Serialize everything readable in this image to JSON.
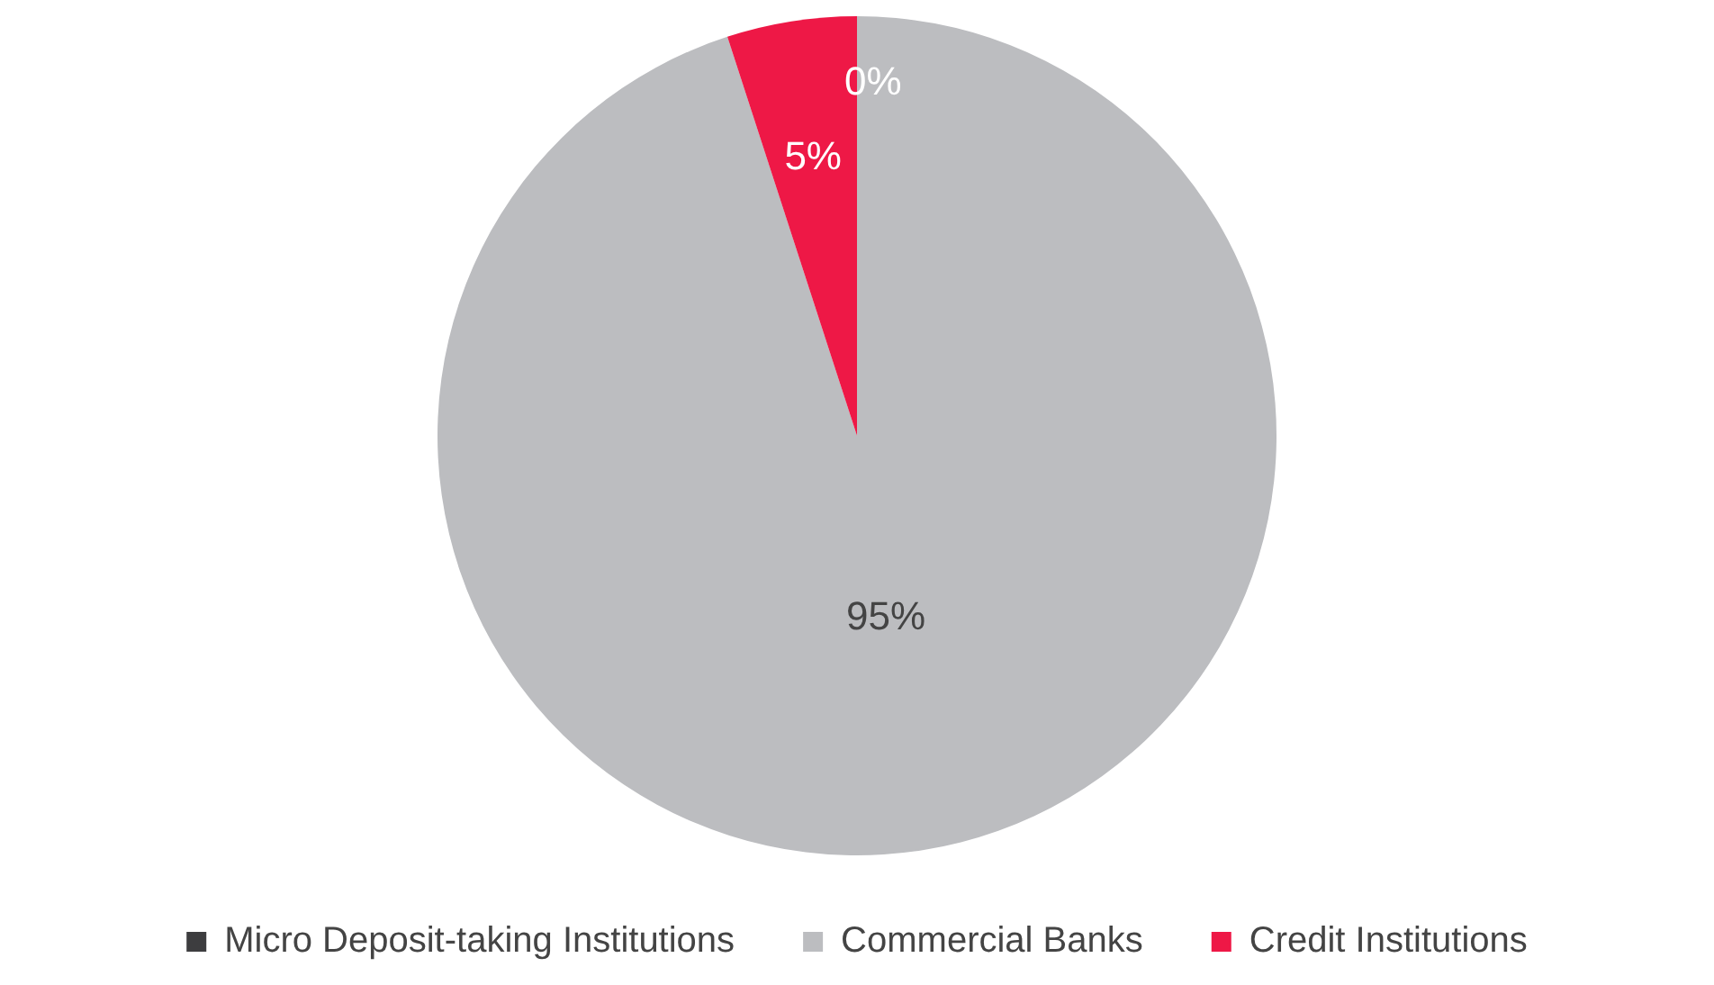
{
  "chart_data": {
    "type": "pie",
    "categories": [
      "Micro Deposit-taking Institutions",
      "Commercial Banks",
      "Credit Institutions"
    ],
    "values": [
      0,
      95,
      5
    ],
    "value_labels": [
      "0%",
      "95%",
      "5%"
    ],
    "colors": [
      "#3d3d3f",
      "#bcbdc0",
      "#ee1846"
    ],
    "legend": "bottom"
  }
}
